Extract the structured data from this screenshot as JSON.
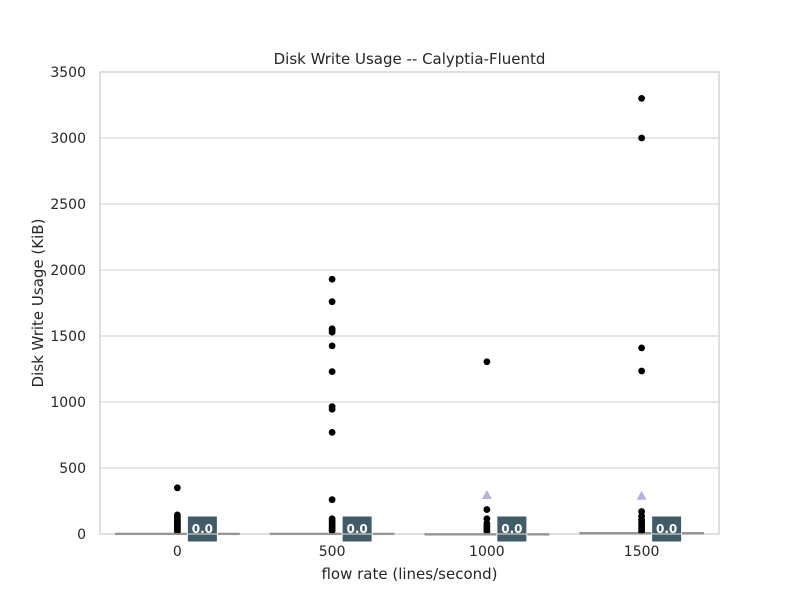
{
  "chart_data": {
    "type": "box",
    "title": "Disk Write Usage -- Calyptia-Fluentd",
    "xlabel": "flow rate (lines/second)",
    "ylabel": "Disk Write Usage (KiB)",
    "categories": [
      "0",
      "500",
      "1000",
      "1500"
    ],
    "ylim": [
      0,
      3500
    ],
    "yticks": [
      0,
      500,
      1000,
      1500,
      2000,
      2500,
      3000,
      3500
    ],
    "grid": true,
    "groups": [
      {
        "category": "0",
        "median": 0.0,
        "q1": 0,
        "q3": 5,
        "whisker_low": 0,
        "whisker_high": 10,
        "mean": null,
        "median_label": "0.0",
        "outliers": [
          350,
          145,
          130,
          115,
          100,
          90,
          80,
          70,
          60,
          50,
          40,
          30,
          20
        ]
      },
      {
        "category": "500",
        "median": 0.0,
        "q1": 0,
        "q3": 5,
        "whisker_low": 0,
        "whisker_high": 10,
        "mean": null,
        "median_label": "0.0",
        "outliers": [
          1930,
          1760,
          1555,
          1545,
          1530,
          1425,
          1230,
          965,
          945,
          770,
          260,
          115,
          100,
          85,
          70,
          55,
          40,
          25
        ]
      },
      {
        "category": "1000",
        "median": 0.0,
        "q1": 0,
        "q3": 3,
        "whisker_low": 0,
        "whisker_high": 6,
        "mean": 295,
        "median_label": "0.0",
        "outliers": [
          1305,
          185,
          115,
          80,
          60,
          45,
          30,
          20
        ]
      },
      {
        "category": "1500",
        "median": 0.0,
        "q1": 0,
        "q3": 8,
        "whisker_low": 0,
        "whisker_high": 15,
        "mean": 290,
        "median_label": "0.0",
        "outliers": [
          3300,
          3000,
          1410,
          1235,
          170,
          135,
          110,
          90,
          75,
          60,
          45,
          30,
          20
        ]
      }
    ],
    "colors": {
      "box_fill": "#3b6e8f",
      "box_edge": "#3f3f3f",
      "outlier": "#000000",
      "mean_marker": "#b3b3e0",
      "badge": "#425b68",
      "grid": "#cccccc",
      "frame": "#cccccc"
    }
  }
}
